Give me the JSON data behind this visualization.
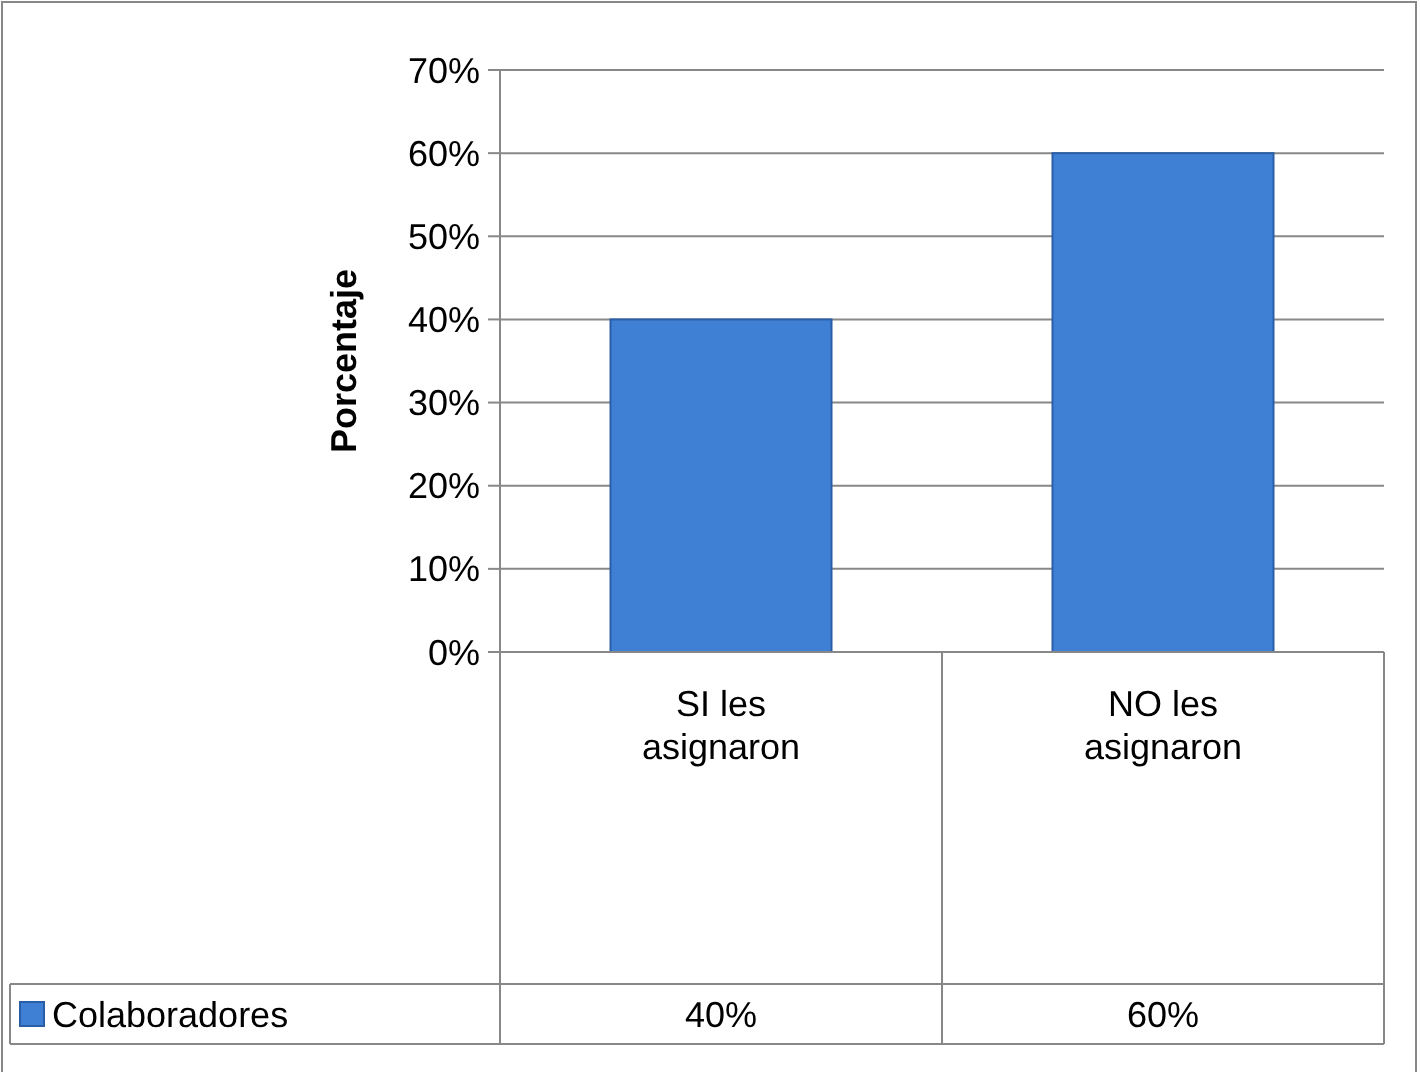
{
  "chart_data": {
    "type": "bar",
    "ylabel": "Porcentaje",
    "categories": [
      "SI les asignaron",
      "NO les asignaron"
    ],
    "series": [
      {
        "name": "Colaboradores",
        "color": "#3f7fd4",
        "values": [
          40,
          60
        ],
        "value_labels": [
          "40%",
          "60%"
        ]
      }
    ],
    "ylim": [
      0,
      70
    ],
    "yticks": [
      {
        "value": 0,
        "label": "0%"
      },
      {
        "value": 10,
        "label": "10%"
      },
      {
        "value": 20,
        "label": "20%"
      },
      {
        "value": 30,
        "label": "30%"
      },
      {
        "value": 40,
        "label": "40%"
      },
      {
        "value": 50,
        "label": "50%"
      },
      {
        "value": 60,
        "label": "60%"
      },
      {
        "value": 70,
        "label": "70%"
      }
    ],
    "grid": "y",
    "legend": "bottom"
  }
}
